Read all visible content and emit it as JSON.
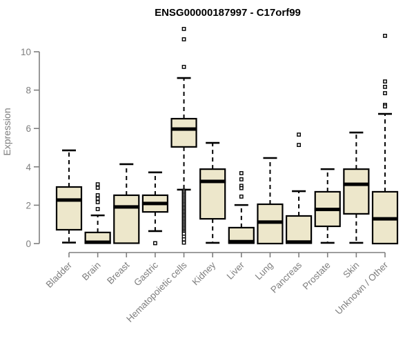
{
  "chart_data": {
    "type": "boxplot",
    "title": "ENSG00000187997 - C17orf99",
    "xlabel": "",
    "ylabel": "Expression",
    "ylim": [
      0,
      11.5
    ],
    "yticks": [
      0,
      2,
      4,
      6,
      8,
      10
    ],
    "grid": false,
    "legend": "none",
    "categories": [
      {
        "label": "Bladder",
        "whisker_low": 0.05,
        "q1": 0.72,
        "median": 2.27,
        "q3": 2.95,
        "whisker_high": 4.86,
        "outliers": []
      },
      {
        "label": "Brain",
        "whisker_low": 0.02,
        "q1": 0.02,
        "median": 0.07,
        "q3": 0.58,
        "whisker_high": 1.47,
        "outliers": [
          3.09,
          2.91,
          2.52,
          2.34,
          2.16,
          1.8
        ]
      },
      {
        "label": "Breast",
        "whisker_low": 0.02,
        "q1": 0.02,
        "median": 1.91,
        "q3": 2.52,
        "whisker_high": 4.14,
        "outliers": []
      },
      {
        "label": "Gastric",
        "whisker_low": 0.65,
        "q1": 1.65,
        "median": 2.09,
        "q3": 2.52,
        "whisker_high": 3.71,
        "outliers": [
          0.02
        ]
      },
      {
        "label": "Hematopoietic cells",
        "whisker_low": 2.81,
        "q1": 5.04,
        "median": 5.97,
        "q3": 6.51,
        "whisker_high": 8.63,
        "outliers": [
          11.19,
          10.65,
          9.21,
          2.75,
          2.68,
          2.61,
          2.54,
          2.47,
          2.4,
          2.33,
          2.26,
          2.19,
          2.12,
          2.05,
          1.98,
          1.91,
          1.84,
          1.77,
          1.7,
          1.63,
          1.56,
          1.49,
          1.42,
          1.35,
          1.28,
          1.21,
          1.14,
          1.07,
          1.0,
          0.93,
          0.86,
          0.79,
          0.72,
          0.65,
          0.58,
          0.51,
          0.36,
          0.22,
          0.05
        ]
      },
      {
        "label": "Kidney",
        "whisker_low": 0.04,
        "q1": 1.29,
        "median": 3.24,
        "q3": 3.88,
        "whisker_high": 5.25,
        "outliers": []
      },
      {
        "label": "Liver",
        "whisker_low": 0.02,
        "q1": 0.02,
        "median": 0.1,
        "q3": 0.83,
        "whisker_high": 2.01,
        "outliers": [
          3.67,
          3.35,
          3.01,
          2.89,
          2.45
        ]
      },
      {
        "label": "Lung",
        "whisker_low": 0.0,
        "q1": 0.0,
        "median": 1.12,
        "q3": 2.05,
        "whisker_high": 4.46,
        "outliers": []
      },
      {
        "label": "Pancreas",
        "whisker_low": 0.02,
        "q1": 0.02,
        "median": 0.08,
        "q3": 1.44,
        "whisker_high": 2.73,
        "outliers": [
          5.68,
          5.14
        ]
      },
      {
        "label": "Prostate",
        "whisker_low": 0.04,
        "q1": 0.9,
        "median": 1.78,
        "q3": 2.7,
        "whisker_high": 3.88,
        "outliers": []
      },
      {
        "label": "Skin",
        "whisker_low": 0.04,
        "q1": 1.55,
        "median": 3.09,
        "q3": 3.88,
        "whisker_high": 5.79,
        "outliers": []
      },
      {
        "label": "Unknown / Other",
        "whisker_low": 0.0,
        "q1": 0.0,
        "median": 1.29,
        "q3": 2.7,
        "whisker_high": 6.76,
        "outliers": [
          10.83,
          8.45,
          8.17,
          7.84,
          7.23,
          7.15
        ]
      }
    ],
    "colors": {
      "box_fill": "#EDE7CB",
      "box_stroke": "#000000",
      "median": "#000000",
      "outlier_stroke": "#000000",
      "outlier_fill": "#ffffff",
      "axis": "#7E7E7E",
      "tick_label": "#7E7E7E",
      "title": "#000000"
    }
  }
}
